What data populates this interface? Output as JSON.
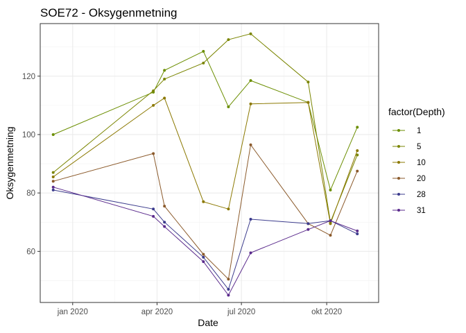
{
  "chart_data": {
    "type": "line",
    "title": "SOE72  -  Oksygenmetning",
    "xlabel": "Date",
    "ylabel": "Oksygenmetning",
    "x_ticks": [
      {
        "date": "2020-01-01",
        "label": "jan 2020"
      },
      {
        "date": "2020-04-01",
        "label": "apr 2020"
      },
      {
        "date": "2020-07-01",
        "label": "jul 2020"
      },
      {
        "date": "2020-10-01",
        "label": "okt 2020"
      }
    ],
    "y_ticks": [
      60,
      80,
      100,
      120
    ],
    "xlim": [
      "2019-11-27",
      "2020-11-26"
    ],
    "ylim": [
      42.5,
      138
    ],
    "grid": true,
    "legend_title": "factor(Depth)",
    "legend_position": "right",
    "x": [
      "2019-12-11",
      "2020-03-28",
      "2020-04-09",
      "2020-05-21",
      "2020-06-17",
      "2020-07-11",
      "2020-09-11",
      "2020-10-05",
      "2020-11-03"
    ],
    "series": [
      {
        "name": "1",
        "color": "#6b8e00",
        "values": [
          100,
          114.5,
          122,
          128.5,
          109.5,
          118.5,
          111,
          81,
          102.5
        ]
      },
      {
        "name": "5",
        "color": "#7a8500",
        "values": [
          87,
          115,
          119,
          124.5,
          132.5,
          134.5,
          118,
          70,
          93
        ]
      },
      {
        "name": "10",
        "color": "#8b7800",
        "values": [
          85.5,
          110,
          112.5,
          77,
          74.5,
          110.5,
          111,
          69.5,
          94.5
        ]
      },
      {
        "name": "20",
        "color": "#8b5a2b",
        "values": [
          84,
          93.5,
          75.5,
          59,
          50.5,
          96.5,
          69.5,
          65.5,
          87.5
        ]
      },
      {
        "name": "28",
        "color": "#3b3b8c",
        "values": [
          81,
          74.5,
          70,
          58,
          47,
          71,
          69.5,
          70.5,
          66
        ]
      },
      {
        "name": "31",
        "color": "#5a2a8c",
        "values": [
          82,
          72,
          68.5,
          56.5,
          45,
          59.5,
          67.5,
          70.5,
          67
        ]
      }
    ]
  }
}
